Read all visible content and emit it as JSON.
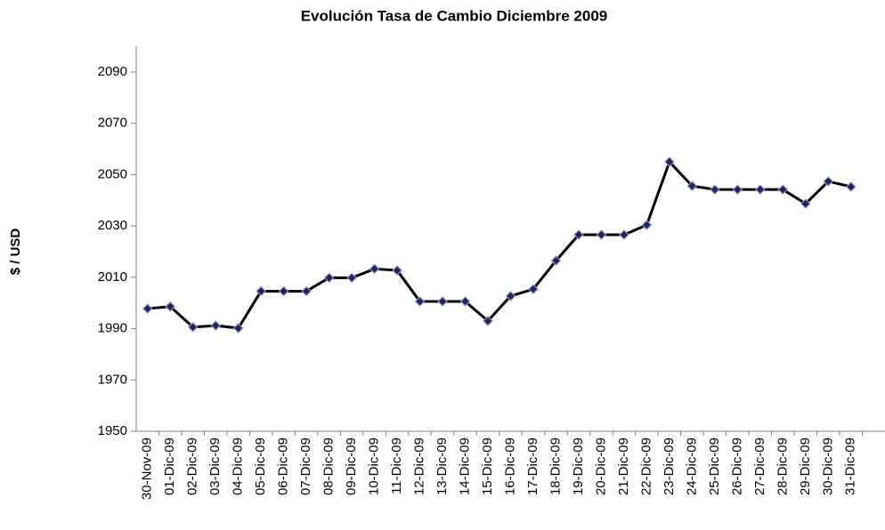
{
  "chart_data": {
    "type": "line",
    "title": "Evolución Tasa de Cambio Diciembre 2009",
    "y_label": "$ / USD",
    "categories": [
      "30-Nov-09",
      "01-Dic-09",
      "02-Dic-09",
      "03-Dic-09",
      "04-Dic-09",
      "05-Dic-09",
      "06-Dic-09",
      "07-Dic-09",
      "08-Dic-09",
      "09-Dic-09",
      "10-Dic-09",
      "11-Dic-09",
      "12-Dic-09",
      "13-Dic-09",
      "14-Dic-09",
      "15-Dic-09",
      "16-Dic-09",
      "17-Dic-09",
      "18-Dic-09",
      "19-Dic-09",
      "20-Dic-09",
      "21-Dic-09",
      "22-Dic-09",
      "23-Dic-09",
      "24-Dic-09",
      "25-Dic-09",
      "26-Dic-09",
      "27-Dic-09",
      "28-Dic-09",
      "29-Dic-09",
      "30-Dic-09",
      "31-Dic-09"
    ],
    "series": [
      {
        "name": "Tasa de Cambio",
        "color": "#000000",
        "marker_color": "#1f1f7a",
        "values": [
          1997.8,
          1998.6,
          1990.6,
          1991.2,
          1990.2,
          2004.6,
          2004.6,
          2004.6,
          2009.8,
          2009.8,
          2013.3,
          2012.7,
          2000.6,
          2000.6,
          2000.6,
          1993.0,
          2002.7,
          2005.4,
          2016.5,
          2026.6,
          2026.6,
          2026.6,
          2030.4,
          2055.0,
          2045.6,
          2044.2,
          2044.2,
          2044.2,
          2044.2,
          2038.7,
          2047.4,
          2045.3
        ]
      }
    ],
    "ylim": [
      1950,
      2090
    ],
    "yticks": [
      1950,
      1970,
      1990,
      2010,
      2030,
      2050,
      2070,
      2090
    ],
    "grid": false
  }
}
